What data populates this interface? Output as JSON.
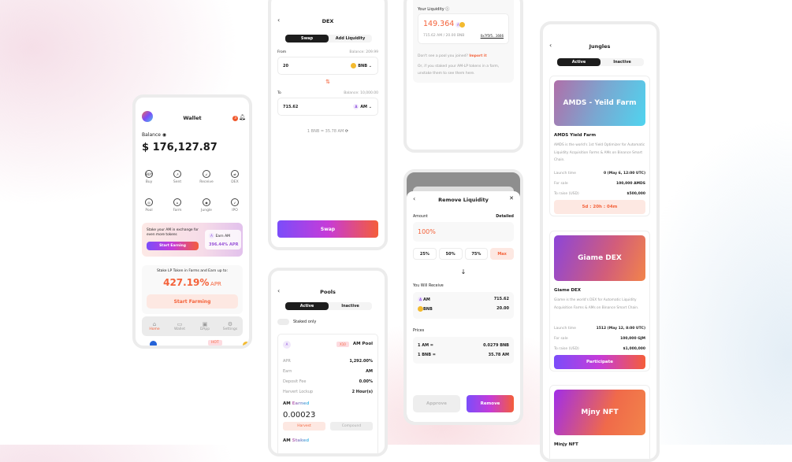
{
  "wallet": {
    "title": "Wallet",
    "notif_count": "3",
    "balance_label": "Balance",
    "balance": "$ 176,127.87",
    "actions": [
      {
        "label": "Buy",
        "icon": "BUY"
      },
      {
        "label": "Sent",
        "icon": "↗"
      },
      {
        "label": "Receive",
        "icon": "↙"
      },
      {
        "label": "DEX",
        "icon": "⇄"
      },
      {
        "label": "Pool",
        "icon": "◎"
      },
      {
        "label": "Farm",
        "icon": "⌂"
      },
      {
        "label": "Jungle",
        "icon": "◉"
      },
      {
        "label": "IPO",
        "icon": "➶"
      }
    ],
    "promo": {
      "text": "Stake your AM in exchange for even more tokens",
      "button": "Start Earning",
      "earn_label": "Earn AM",
      "earn_apr": "396.44% APR"
    },
    "farm": {
      "text": "Stake LP Token in Farms and Earn up to:",
      "apr_value": "427.19%",
      "apr_unit": "APR",
      "button": "Start Farming"
    },
    "nav": [
      "Home",
      "Wallet",
      "DApp",
      "Settings"
    ],
    "hot_badge": "HOT"
  },
  "dex": {
    "title": "DEX",
    "tabs": [
      "Swap",
      "Add Liquidity"
    ],
    "from_label": "From",
    "from_balance": "Balance: 209.99",
    "from_value": "20",
    "from_token": "BNB",
    "to_label": "To",
    "to_balance": "Balance: 10,000.00",
    "to_value": "715.62",
    "to_token": "AM",
    "rate": "1 BNB = 35.78 AM",
    "swap_button": "Swap"
  },
  "pools": {
    "title": "Pools",
    "tabs": [
      "Active",
      "Inactive"
    ],
    "staked_only": "Staked only",
    "pool_badge": "X10",
    "pool_name": "AM Pool",
    "rows": [
      {
        "k": "APR",
        "v": "1,292.00%"
      },
      {
        "k": "Earn",
        "v": "AM"
      },
      {
        "k": "Deposit Fee",
        "v": "0.00%"
      },
      {
        "k": "Harvert Lockup",
        "v": "2 Hour(s)"
      }
    ],
    "earned_prefix": "AM",
    "earned_word": "Earned",
    "earned_value": "0.00023",
    "harvest": "Harvest",
    "compound": "Compound",
    "staked_prefix": "AM",
    "staked_word": "Staked"
  },
  "liquidity": {
    "title": "Your Liquidity",
    "value": "149.364",
    "pair": "715.62 AM / 20.00 BNB",
    "address": "0x7f5f5...1666",
    "missing": "Don't see a pool you joined?",
    "import": "Import it",
    "note": "Or, if you staked your AM-LP tokens in a farm, unstake them to see them here."
  },
  "remove": {
    "title": "Remove Liquidity",
    "amount_label": "Amount",
    "detailed": "Detailed",
    "amount": "100%",
    "options": [
      "25%",
      "50%",
      "75%",
      "Max"
    ],
    "receive_label": "You Will Receive",
    "receive": [
      {
        "token": "AM",
        "value": "715.62"
      },
      {
        "token": "BNB",
        "value": "20.00"
      }
    ],
    "prices_label": "Prices",
    "prices": [
      {
        "k": "1 AM =",
        "v": "0.0279 BNB"
      },
      {
        "k": "1 BNB =",
        "v": "35.78 AM"
      }
    ],
    "approve": "Approve",
    "remove": "Remove"
  },
  "jungles": {
    "title": "Jungles",
    "tabs": [
      "Active",
      "Inactive"
    ],
    "cards": [
      {
        "banner": "AMDS - Yeild Farm",
        "name": "AMDS Yield Farm",
        "desc": "AMDS is the world's 1st Yield Optimizer for Automatic Liquidity Acquisition Farms & AMs on Binance Smart Chain.",
        "launch_k": "Launch time",
        "launch_v": "0 (May 6, 12:00 UTC)",
        "sale_k": "For sale",
        "sale_v": "100,000 AMDS",
        "raise_k": "To raise (USD)",
        "raise_v": "$500,000",
        "action": "5d : 20h : 04m"
      },
      {
        "banner": "Giame DEX",
        "name": "Giame DEX",
        "desc": "Giame is the world's DEX for Automatic Liquidity Acquisition Farms & AMs on Binance Smart Chain.",
        "launch_k": "Launch time",
        "launch_v": "1512 (May 12, 8:00 UTC)",
        "sale_k": "For sale",
        "sale_v": "100,000 GJM",
        "raise_k": "To raise (USD)",
        "raise_v": "$1,000,000",
        "action": "Participate"
      },
      {
        "banner": "Mjny NFT",
        "name": "Minjy NFT"
      }
    ]
  },
  "colors": {
    "accent": "#f4623a",
    "purple": "#7b4dfa",
    "dark": "#1d1d1d"
  }
}
